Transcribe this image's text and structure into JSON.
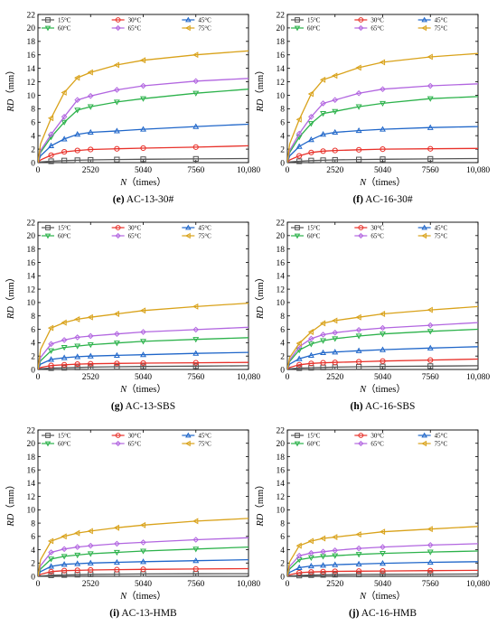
{
  "shared": {
    "legend": [
      "15°C",
      "30°C",
      "45°C",
      "60°C",
      "65°C",
      "75°C"
    ],
    "colors": {
      "15°C": "#555555",
      "30°C": "#e8312a",
      "45°C": "#1f66c9",
      "60°C": "#2cb24b",
      "65°C": "#b266e0",
      "75°C": "#d9a21a"
    },
    "markers": {
      "15°C": "square",
      "30°C": "circle",
      "45°C": "triangle-up",
      "60°C": "triangle-down",
      "65°C": "diamond",
      "75°C": "triangle-left"
    }
  },
  "chart_data": [
    {
      "type": "line",
      "caption_letter": "(e)",
      "caption_text": " AC-13-30#",
      "ylabel_main": "RD",
      "ylabel_unit": "（mm）",
      "xlabel_main": "N",
      "xlabel_unit": "（times）",
      "xlim": [
        0,
        10080
      ],
      "ylim": [
        0,
        22
      ],
      "x_ticks": [
        "0",
        "2520",
        "5040",
        "7560",
        "10,080"
      ],
      "y_ticks": [
        "0",
        "2",
        "4",
        "6",
        "8",
        "10",
        "12",
        "14",
        "16",
        "18",
        "20",
        "22"
      ],
      "x": [
        0,
        126,
        630,
        1260,
        1890,
        2520,
        3780,
        5040,
        7560,
        10080
      ],
      "series": [
        {
          "name": "15°C",
          "values": [
            0,
            0.1,
            0.2,
            0.3,
            0.35,
            0.4,
            0.45,
            0.5,
            0.55,
            0.6
          ]
        },
        {
          "name": "30°C",
          "values": [
            0,
            0.4,
            1.1,
            1.6,
            1.8,
            1.95,
            2.05,
            2.15,
            2.3,
            2.5
          ]
        },
        {
          "name": "45°C",
          "values": [
            0,
            1.0,
            2.5,
            3.5,
            4.2,
            4.5,
            4.7,
            4.95,
            5.35,
            5.7
          ]
        },
        {
          "name": "60°C",
          "values": [
            0,
            1.5,
            3.8,
            6.0,
            7.8,
            8.3,
            9.0,
            9.5,
            10.3,
            10.9
          ]
        },
        {
          "name": "65°C",
          "values": [
            0,
            1.8,
            4.2,
            6.8,
            9.3,
            9.9,
            10.8,
            11.4,
            12.1,
            12.5
          ]
        },
        {
          "name": "75°C",
          "values": [
            0,
            2.8,
            6.6,
            10.4,
            12.6,
            13.4,
            14.5,
            15.2,
            16.0,
            16.6
          ]
        }
      ]
    },
    {
      "type": "line",
      "caption_letter": "(f)",
      "caption_text": " AC-16-30#",
      "ylabel_main": "RD",
      "ylabel_unit": "（mm）",
      "xlabel_main": "N",
      "xlabel_unit": "（times）",
      "xlim": [
        0,
        10080
      ],
      "ylim": [
        0,
        22
      ],
      "x_ticks": [
        "0",
        "2520",
        "5040",
        "7560",
        "10,080"
      ],
      "y_ticks": [
        "0",
        "2",
        "4",
        "6",
        "8",
        "10",
        "12",
        "14",
        "16",
        "18",
        "20",
        "22"
      ],
      "x": [
        0,
        126,
        630,
        1260,
        1890,
        2520,
        3780,
        5040,
        7560,
        10080
      ],
      "series": [
        {
          "name": "15°C",
          "values": [
            0,
            0.1,
            0.2,
            0.3,
            0.35,
            0.4,
            0.45,
            0.5,
            0.55,
            0.6
          ]
        },
        {
          "name": "30°C",
          "values": [
            0,
            0.4,
            1.0,
            1.5,
            1.7,
            1.8,
            1.9,
            2.0,
            2.05,
            2.1
          ]
        },
        {
          "name": "45°C",
          "values": [
            0,
            1.0,
            2.4,
            3.4,
            4.2,
            4.5,
            4.75,
            4.95,
            5.2,
            5.35
          ]
        },
        {
          "name": "60°C",
          "values": [
            0,
            1.5,
            3.8,
            5.8,
            7.3,
            7.6,
            8.3,
            8.8,
            9.5,
            9.8
          ]
        },
        {
          "name": "65°C",
          "values": [
            0,
            1.8,
            4.3,
            6.8,
            8.8,
            9.3,
            10.3,
            10.9,
            11.4,
            11.7
          ]
        },
        {
          "name": "75°C",
          "values": [
            0,
            2.8,
            6.4,
            10.2,
            12.3,
            12.9,
            14.1,
            14.9,
            15.7,
            16.2
          ]
        }
      ]
    },
    {
      "type": "line",
      "caption_letter": "(g)",
      "caption_text": " AC-13-SBS",
      "ylabel_main": "RD",
      "ylabel_unit": "（mm）",
      "xlabel_main": "N",
      "xlabel_unit": "（times）",
      "xlim": [
        0,
        10080
      ],
      "ylim": [
        0,
        22
      ],
      "x_ticks": [
        "0",
        "2520",
        "5040",
        "7560",
        "10,080"
      ],
      "y_ticks": [
        "0",
        "2",
        "4",
        "6",
        "8",
        "10",
        "12",
        "14",
        "16",
        "18",
        "20",
        "22"
      ],
      "x": [
        0,
        126,
        630,
        1260,
        1890,
        2520,
        3780,
        5040,
        7560,
        10080
      ],
      "series": [
        {
          "name": "15°C",
          "values": [
            0,
            0.1,
            0.2,
            0.25,
            0.3,
            0.35,
            0.4,
            0.45,
            0.5,
            0.55
          ]
        },
        {
          "name": "30°C",
          "values": [
            0,
            0.3,
            0.6,
            0.7,
            0.8,
            0.85,
            0.9,
            0.95,
            1.0,
            1.05
          ]
        },
        {
          "name": "45°C",
          "values": [
            0,
            0.8,
            1.5,
            1.75,
            1.9,
            2.0,
            2.1,
            2.2,
            2.4,
            2.55
          ]
        },
        {
          "name": "60°C",
          "values": [
            0,
            1.3,
            2.8,
            3.3,
            3.5,
            3.7,
            3.95,
            4.2,
            4.5,
            4.75
          ]
        },
        {
          "name": "65°C",
          "values": [
            0,
            1.8,
            3.8,
            4.4,
            4.8,
            5.0,
            5.3,
            5.6,
            5.95,
            6.3
          ]
        },
        {
          "name": "75°C",
          "values": [
            0,
            3.0,
            6.2,
            7.0,
            7.5,
            7.8,
            8.3,
            8.8,
            9.4,
            9.9
          ]
        }
      ]
    },
    {
      "type": "line",
      "caption_letter": "(h)",
      "caption_text": " AC-16-SBS",
      "ylabel_main": "RD",
      "ylabel_unit": "（mm）",
      "xlabel_main": "N",
      "xlabel_unit": "（times）",
      "xlim": [
        0,
        10080
      ],
      "ylim": [
        0,
        22
      ],
      "x_ticks": [
        "0",
        "2520",
        "5040",
        "7560",
        "10,080"
      ],
      "y_ticks": [
        "0",
        "2",
        "4",
        "6",
        "8",
        "10",
        "12",
        "14",
        "16",
        "18",
        "20",
        "22"
      ],
      "x": [
        0,
        126,
        630,
        1260,
        1890,
        2520,
        3780,
        5040,
        7560,
        10080
      ],
      "series": [
        {
          "name": "15°C",
          "values": [
            0,
            0.1,
            0.2,
            0.25,
            0.3,
            0.35,
            0.4,
            0.45,
            0.5,
            0.55
          ]
        },
        {
          "name": "30°C",
          "values": [
            0,
            0.3,
            0.7,
            0.9,
            1.0,
            1.05,
            1.15,
            1.25,
            1.4,
            1.55
          ]
        },
        {
          "name": "45°C",
          "values": [
            0,
            0.8,
            1.6,
            2.1,
            2.5,
            2.6,
            2.8,
            2.95,
            3.2,
            3.4
          ]
        },
        {
          "name": "60°C",
          "values": [
            0,
            1.2,
            2.9,
            3.8,
            4.3,
            4.6,
            5.0,
            5.3,
            5.7,
            6.0
          ]
        },
        {
          "name": "65°C",
          "values": [
            0,
            1.4,
            3.4,
            4.6,
            5.2,
            5.5,
            5.9,
            6.2,
            6.6,
            7.0
          ]
        },
        {
          "name": "75°C",
          "values": [
            0,
            1.8,
            3.9,
            5.6,
            6.9,
            7.3,
            7.8,
            8.3,
            8.9,
            9.4
          ]
        }
      ]
    },
    {
      "type": "line",
      "caption_letter": "(i)",
      "caption_text": " AC-13-HMB",
      "ylabel_main": "RD",
      "ylabel_unit": "（mm）",
      "xlabel_main": "N",
      "xlabel_unit": "（times）",
      "xlim": [
        0,
        10080
      ],
      "ylim": [
        0,
        22
      ],
      "x_ticks": [
        "0",
        "2520",
        "5040",
        "7560",
        "10,080"
      ],
      "y_ticks": [
        "0",
        "2",
        "4",
        "6",
        "8",
        "10",
        "12",
        "14",
        "16",
        "18",
        "20",
        "22"
      ],
      "x": [
        0,
        126,
        630,
        1260,
        1890,
        2520,
        3780,
        5040,
        7560,
        10080
      ],
      "series": [
        {
          "name": "15°C",
          "values": [
            0,
            0.05,
            0.15,
            0.2,
            0.25,
            0.3,
            0.32,
            0.35,
            0.38,
            0.4
          ]
        },
        {
          "name": "30°C",
          "values": [
            0,
            0.3,
            0.7,
            0.85,
            0.9,
            0.95,
            1.0,
            1.05,
            1.1,
            1.15
          ]
        },
        {
          "name": "45°C",
          "values": [
            0,
            0.7,
            1.5,
            1.8,
            1.9,
            2.0,
            2.1,
            2.2,
            2.35,
            2.5
          ]
        },
        {
          "name": "60°C",
          "values": [
            0,
            1.1,
            2.6,
            3.0,
            3.2,
            3.4,
            3.6,
            3.8,
            4.1,
            4.4
          ]
        },
        {
          "name": "65°C",
          "values": [
            0,
            1.6,
            3.6,
            4.1,
            4.4,
            4.6,
            4.9,
            5.1,
            5.5,
            5.8
          ]
        },
        {
          "name": "75°C",
          "values": [
            0,
            2.5,
            5.3,
            6.0,
            6.5,
            6.8,
            7.3,
            7.7,
            8.3,
            8.7
          ]
        }
      ]
    },
    {
      "type": "line",
      "caption_letter": "(j)",
      "caption_text": " AC-16-HMB",
      "ylabel_main": "RD",
      "ylabel_unit": "（mm）",
      "xlabel_main": "N",
      "xlabel_unit": "（times）",
      "xlim": [
        0,
        10080
      ],
      "ylim": [
        0,
        22
      ],
      "x_ticks": [
        "0",
        "2520",
        "5040",
        "7560",
        "10,080"
      ],
      "y_ticks": [
        "0",
        "2",
        "4",
        "6",
        "8",
        "10",
        "12",
        "14",
        "16",
        "18",
        "20",
        "22"
      ],
      "x": [
        0,
        126,
        630,
        1260,
        1890,
        2520,
        3780,
        5040,
        7560,
        10080
      ],
      "series": [
        {
          "name": "15°C",
          "values": [
            0,
            0.05,
            0.12,
            0.18,
            0.22,
            0.25,
            0.28,
            0.3,
            0.33,
            0.35
          ]
        },
        {
          "name": "30°C",
          "values": [
            0,
            0.25,
            0.55,
            0.65,
            0.7,
            0.75,
            0.78,
            0.8,
            0.85,
            0.9
          ]
        },
        {
          "name": "45°C",
          "values": [
            0,
            0.6,
            1.3,
            1.55,
            1.65,
            1.75,
            1.85,
            1.95,
            2.1,
            2.2
          ]
        },
        {
          "name": "60°C",
          "values": [
            0,
            1.1,
            2.5,
            2.8,
            3.0,
            3.1,
            3.3,
            3.45,
            3.65,
            3.8
          ]
        },
        {
          "name": "65°C",
          "values": [
            0,
            1.5,
            3.1,
            3.5,
            3.7,
            3.9,
            4.2,
            4.4,
            4.7,
            4.9
          ]
        },
        {
          "name": "75°C",
          "values": [
            0,
            2.2,
            4.6,
            5.3,
            5.7,
            5.9,
            6.3,
            6.7,
            7.1,
            7.5
          ]
        }
      ]
    }
  ]
}
